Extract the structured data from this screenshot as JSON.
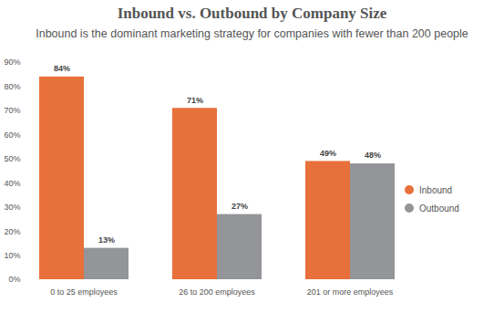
{
  "chart_data": {
    "type": "bar",
    "title": "Inbound vs. Outbound by Company Size",
    "subtitle": "Inbound is the dominant marketing strategy for companies with fewer than 200 people",
    "categories": [
      "0 to 25 employees",
      "26 to 200 employees",
      "201 or more employees"
    ],
    "series": [
      {
        "name": "Inbound",
        "color": "#e8703a",
        "values": [
          84,
          71,
          49
        ],
        "value_labels": [
          "84%",
          "71%",
          "49%"
        ]
      },
      {
        "name": "Outbound",
        "color": "#939598",
        "values": [
          13,
          27,
          48
        ],
        "value_labels": [
          "13%",
          "27%",
          "48%"
        ]
      }
    ],
    "ylim": [
      0,
      90
    ],
    "yticks": [
      {
        "value": 0,
        "label": "0%"
      },
      {
        "value": 10,
        "label": "10%"
      },
      {
        "value": 20,
        "label": "20%"
      },
      {
        "value": 30,
        "label": "30%"
      },
      {
        "value": 40,
        "label": "40%"
      },
      {
        "value": 50,
        "label": "50%"
      },
      {
        "value": 60,
        "label": "60%"
      },
      {
        "value": 70,
        "label": "70%"
      },
      {
        "value": 80,
        "label": "80%"
      },
      {
        "value": 90,
        "label": "90%"
      }
    ],
    "data_labels": true,
    "legend": "right",
    "grid": false
  }
}
